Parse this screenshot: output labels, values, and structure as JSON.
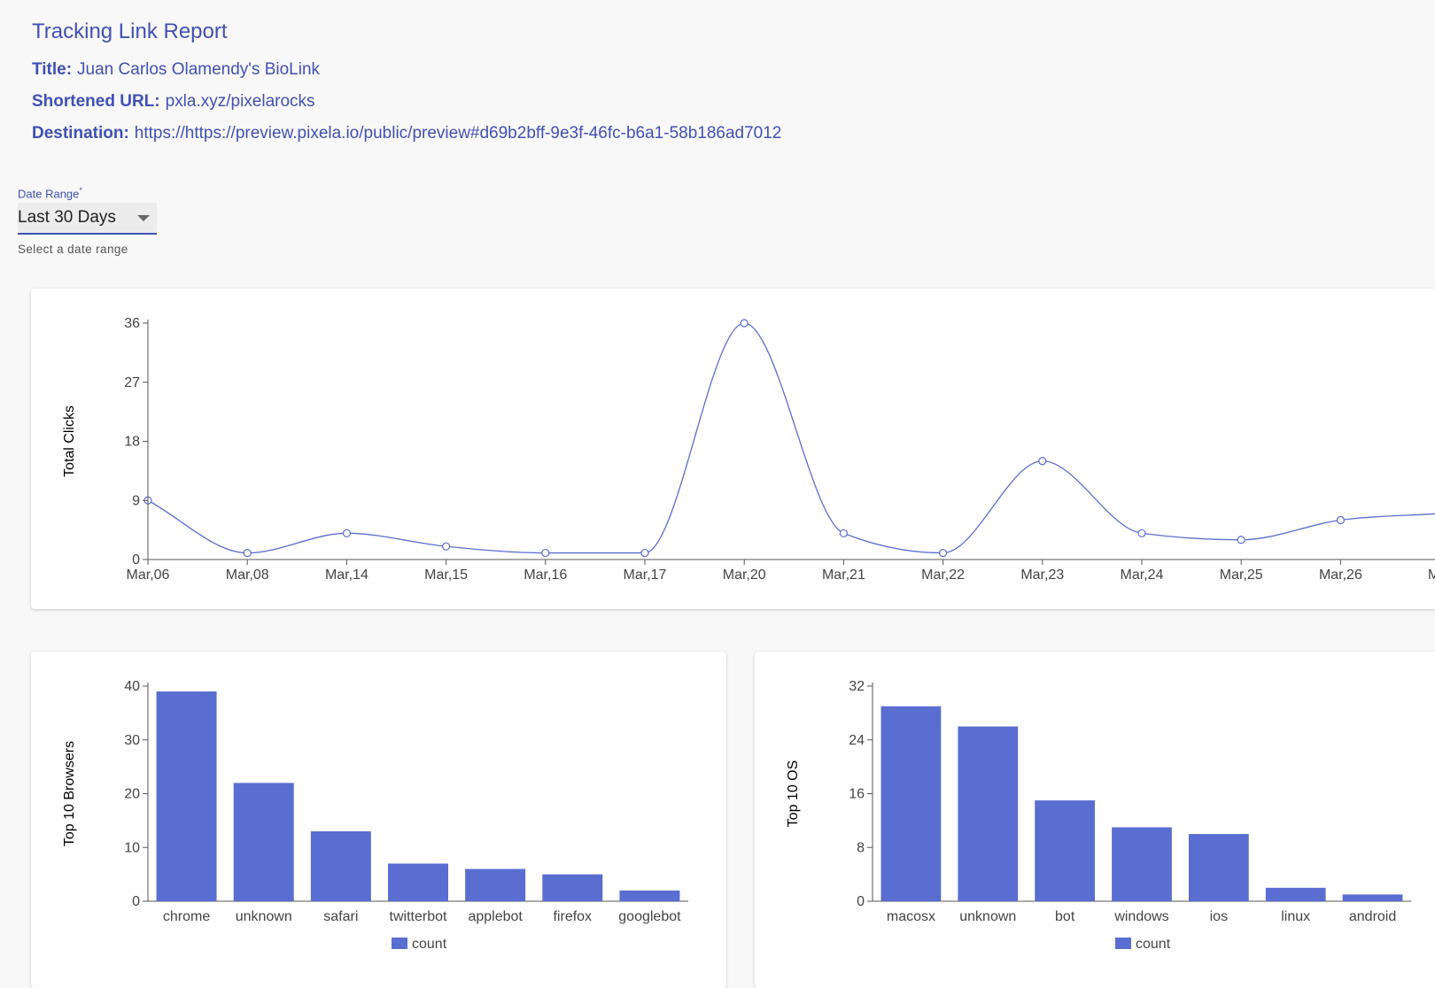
{
  "header": {
    "title": "Tracking Link Report",
    "fields": [
      {
        "label": "Title:",
        "value": "Juan Carlos Olamendy's BioLink"
      },
      {
        "label": "Shortened URL:",
        "value": "pxla.xyz/pixelarocks"
      },
      {
        "label": "Destination:",
        "value": "https://https://preview.pixela.io/public/preview#d69b2bff-9e3f-46fc-b6a1-58b186ad7012"
      }
    ]
  },
  "date_range": {
    "label": "Date Range",
    "required": "*",
    "selected": "Last 30 Days",
    "helper": "Select a date range"
  },
  "chart_data": [
    {
      "type": "line",
      "y_label": "Total Clicks",
      "categories": [
        "Mar,06",
        "Mar,08",
        "Mar,14",
        "Mar,15",
        "Mar,16",
        "Mar,17",
        "Mar,20",
        "Mar,21",
        "Mar,22",
        "Mar,23",
        "Mar,24",
        "Mar,25",
        "Mar,26",
        "Mar"
      ],
      "values": [
        9,
        1,
        4,
        2,
        1,
        1,
        36,
        4,
        1,
        15,
        4,
        3,
        6,
        7
      ],
      "color": "#5a6dd0",
      "ylim": [
        0,
        36
      ],
      "yticks": [
        0,
        9,
        18,
        27,
        36
      ]
    },
    {
      "type": "bar",
      "y_label": "Top 10 Browsers",
      "categories": [
        "chrome",
        "unknown",
        "safari",
        "twitterbot",
        "applebot",
        "firefox",
        "googlebot"
      ],
      "series": [
        {
          "name": "count",
          "color": "#5a6dd0",
          "values": [
            39,
            22,
            13,
            7,
            6,
            5,
            2
          ]
        }
      ],
      "ylim": [
        0,
        40
      ],
      "yticks": [
        0,
        10,
        20,
        30,
        40
      ]
    },
    {
      "type": "bar",
      "y_label": "Top 10 OS",
      "categories": [
        "macosx",
        "unknown",
        "bot",
        "windows",
        "ios",
        "linux",
        "android"
      ],
      "series": [
        {
          "name": "count",
          "color": "#5a6dd0",
          "values": [
            29,
            26,
            15,
            11,
            10,
            2,
            1
          ]
        }
      ],
      "ylim": [
        0,
        32
      ],
      "yticks": [
        0,
        8,
        16,
        24,
        32
      ]
    }
  ]
}
